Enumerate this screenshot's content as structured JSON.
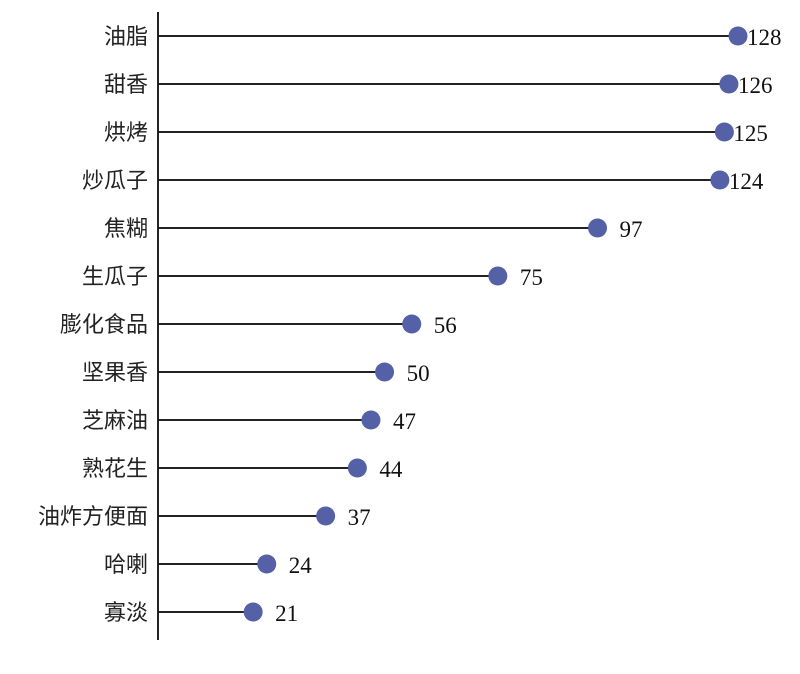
{
  "chart_data": {
    "type": "lollipop",
    "orientation": "horizontal",
    "categories": [
      "油脂",
      "甜香",
      "烘烤",
      "炒瓜子",
      "焦糊",
      "生瓜子",
      "膨化食品",
      "坚果香",
      "芝麻油",
      "熟花生",
      "油炸方便面",
      "哈喇",
      "寡淡"
    ],
    "values": [
      128,
      126,
      125,
      124,
      97,
      75,
      56,
      50,
      47,
      44,
      37,
      24,
      21
    ],
    "xlim": [
      0,
      128
    ],
    "data_labels": true,
    "grid": false,
    "legend": "none",
    "colors": {
      "marker": "#5561a6",
      "stem": "#222222",
      "axis": "#222222"
    }
  }
}
